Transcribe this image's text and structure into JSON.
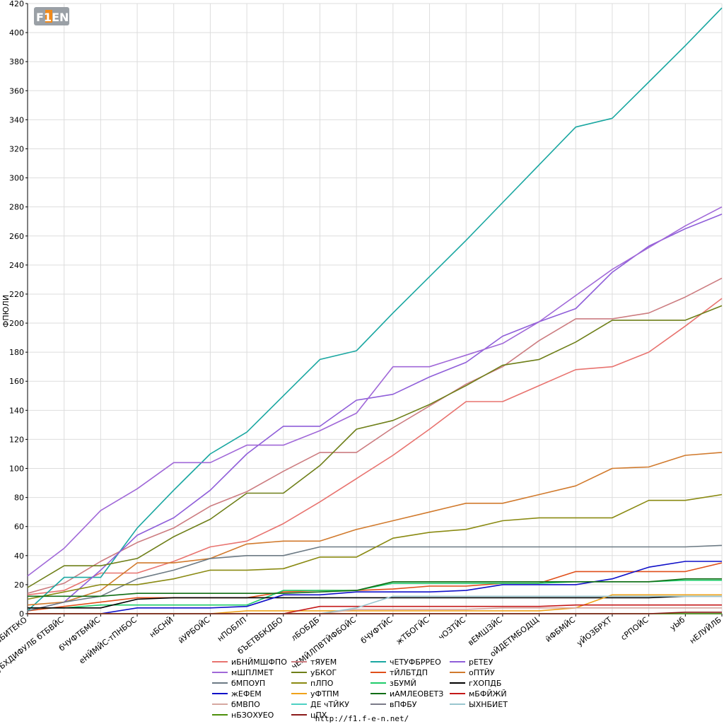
{
  "logo": {
    "text": "F1EN"
  },
  "footer": {
    "url": "http://f1.f-e-n.net/"
  },
  "chart_data": {
    "type": "line",
    "ylabel": "ФПЮЛИ",
    "ylim": [
      0,
      420
    ],
    "yticks": [
      0,
      20,
      40,
      60,
      80,
      100,
      120,
      140,
      160,
      180,
      200,
      220,
      240,
      260,
      280,
      300,
      320,
      340,
      360,
      380,
      400,
      420
    ],
    "grid": true,
    "legend_placement": "bottom",
    "categories": [
      "вБИТЕКО",
      "уБХДИФУЛБ бТБВЙС",
      "бЧУФТБМЙС",
      "еНЙМЙС-тПНБОС",
      "нБСНЙ",
      "йУРБОЙС",
      "нПОБЛП",
      "бЪЕТВБКДБО",
      "лБОБДБ",
      "чЕМЙЛПВТЙФБОЙС",
      "бЧУФТЙС",
      "жТБОГЙС",
      "чОЗТЙС",
      "вЕМШЗЙС",
      "оЙДЕТМБОДЩ",
      "йФБМЙС",
      "уЙОЗБРХТ",
      "сРПОЙС",
      "уЫб",
      "нЕЛУЙЛБ"
    ],
    "series": [
      {
        "name": "иБНЙМШФПО",
        "color": "#e8736f",
        "values": [
          13,
          16,
          28,
          28,
          36,
          46,
          50,
          62,
          77,
          93,
          109,
          127,
          146,
          146,
          157,
          168,
          170,
          180,
          198,
          217
        ]
      },
      {
        "name": "тЯУЕМ",
        "color": "#cc7c80",
        "values": [
          14,
          21,
          36,
          49,
          59,
          74,
          84,
          98,
          111,
          111,
          128,
          143,
          158,
          170,
          188,
          203,
          203,
          207,
          218,
          231
        ]
      },
      {
        "name": "чЕТУФБРРЕО",
        "color": "#1aa7a1",
        "values": [
          2,
          25,
          25,
          59,
          85,
          110,
          125,
          150,
          175,
          181,
          207,
          232,
          257,
          283,
          309,
          335,
          341,
          366,
          391,
          417
        ]
      },
      {
        "name": "рЕТЕУ",
        "color": "#8f5ed9",
        "values": [
          2,
          8,
          30,
          54,
          66,
          85,
          110,
          129,
          129,
          147,
          151,
          163,
          173,
          191,
          201,
          210,
          235,
          253,
          265,
          275
        ]
      },
      {
        "name": "мШПЛМЕТ",
        "color": "#a068d8",
        "values": [
          26,
          45,
          71,
          86,
          104,
          104,
          116,
          116,
          126,
          138,
          170,
          170,
          178,
          186,
          201,
          219,
          237,
          252,
          267,
          280
        ]
      },
      {
        "name": "уБКОГ",
        "color": "#6e7f18",
        "values": [
          18,
          33,
          33,
          38,
          53,
          65,
          83,
          83,
          102,
          127,
          133,
          144,
          157,
          171,
          175,
          187,
          202,
          202,
          202,
          212
        ]
      },
      {
        "name": "тЙЛБТДП",
        "color": "#e04f1a",
        "values": [
          2,
          5,
          8,
          11,
          11,
          11,
          11,
          15,
          16,
          16,
          17,
          19,
          19,
          21,
          21,
          29,
          29,
          29,
          29,
          35
        ]
      },
      {
        "name": "оПТЙУ",
        "color": "#d17a2d",
        "values": [
          6,
          8,
          16,
          35,
          35,
          38,
          48,
          50,
          50,
          58,
          64,
          70,
          76,
          76,
          82,
          88,
          100,
          101,
          109,
          111
        ]
      },
      {
        "name": "бМПОУП",
        "color": "#6c7a84",
        "values": [
          2,
          8,
          12,
          24,
          30,
          38,
          40,
          40,
          46,
          46,
          46,
          46,
          46,
          46,
          46,
          46,
          46,
          46,
          46,
          47
        ]
      },
      {
        "name": "пЛПО",
        "color": "#8a8a12",
        "values": [
          10,
          15,
          20,
          20,
          24,
          30,
          30,
          31,
          39,
          39,
          52,
          56,
          58,
          64,
          66,
          66,
          66,
          78,
          78,
          82
        ]
      },
      {
        "name": "зБУМЙ",
        "color": "#1ecc6a",
        "values": [
          4,
          4,
          6,
          6,
          6,
          6,
          6,
          16,
          16,
          16,
          21,
          21,
          21,
          21,
          21,
          22,
          22,
          22,
          23,
          23
        ]
      },
      {
        "name": "гХОПДБ",
        "color": "#000000",
        "values": [
          4,
          4,
          4,
          10,
          11,
          11,
          11,
          11,
          11,
          11,
          11,
          11,
          11,
          11,
          11,
          11,
          11,
          11,
          12,
          12
        ]
      },
      {
        "name": "жЕФЕМ",
        "color": "#0f0fc8",
        "values": [
          0,
          0,
          0,
          4,
          4,
          4,
          5,
          13,
          13,
          15,
          15,
          15,
          16,
          20,
          20,
          20,
          24,
          32,
          36,
          36
        ]
      },
      {
        "name": "уФТПМ",
        "color": "#f0a21a",
        "values": [
          0,
          0,
          0,
          0,
          0,
          0,
          2,
          2,
          2,
          2,
          2,
          2,
          2,
          2,
          2,
          4,
          13,
          13,
          13,
          13
        ]
      },
      {
        "name": "иАМЛЕОВЕТЗ",
        "color": "#106d14",
        "values": [
          12,
          12,
          12,
          14,
          14,
          14,
          14,
          14,
          15,
          16,
          22,
          22,
          22,
          22,
          22,
          22,
          22,
          22,
          24,
          24
        ]
      },
      {
        "name": "мБФЙЖЙ",
        "color": "#c41818",
        "values": [
          0,
          0,
          0,
          0,
          0,
          0,
          0,
          0,
          5,
          5,
          5,
          5,
          5,
          5,
          5,
          6,
          6,
          6,
          6,
          6
        ]
      },
      {
        "name": "бМВПО",
        "color": "#d6a8a0",
        "values": [
          0,
          0,
          0,
          0,
          0,
          0,
          0,
          0,
          0,
          3,
          3,
          3,
          3,
          4,
          4,
          4,
          4,
          4,
          4,
          4
        ]
      },
      {
        "name": "ДЕ чТЙКУ",
        "color": "#4dd1c3",
        "values": [
          0,
          0,
          0,
          0,
          0,
          0,
          0,
          0,
          0,
          0,
          0,
          0,
          0,
          0,
          0,
          0,
          0,
          0,
          0,
          0
        ]
      },
      {
        "name": "вПФБУ",
        "color": "#7a7a88",
        "values": [
          0,
          0,
          0,
          0,
          0,
          0,
          0,
          0,
          0,
          0,
          0,
          0,
          0,
          0,
          0,
          0,
          0,
          0,
          0,
          0
        ]
      },
      {
        "name": "ЫХНБИЕТ",
        "color": "#99c6cf",
        "values": [
          0,
          0,
          0,
          0,
          0,
          0,
          0,
          0,
          0,
          4,
          12,
          12,
          12,
          12,
          12,
          12,
          12,
          12,
          12,
          12
        ]
      },
      {
        "name": "нБЗОХУЕО",
        "color": "#4d8f0b",
        "values": [
          0,
          0,
          0,
          0,
          0,
          0,
          0,
          0,
          0,
          0,
          0,
          0,
          0,
          0,
          0,
          0,
          0,
          0,
          0,
          0
        ]
      },
      {
        "name": "цПХ",
        "color": "#8b1a1a",
        "values": [
          0,
          0,
          0,
          0,
          0,
          0,
          0,
          0,
          0,
          0,
          0,
          0,
          0,
          0,
          0,
          0,
          0,
          0,
          1,
          1
        ]
      }
    ]
  }
}
